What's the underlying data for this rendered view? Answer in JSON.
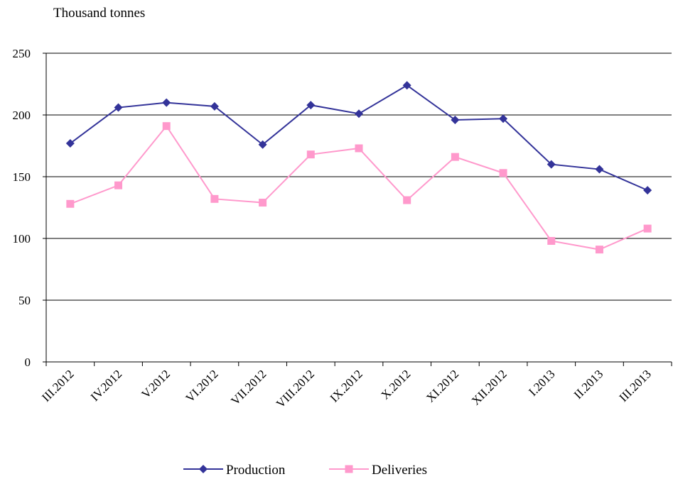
{
  "chart_data": {
    "type": "line",
    "unit_label": "Thousand tonnes",
    "categories": [
      "III.2012",
      "IV.2012",
      "V.2012",
      "VI.2012",
      "VII.2012",
      "VIII.2012",
      "IX.2012",
      "X.2012",
      "XI.2012",
      "XII.2012",
      "I.2013",
      "II.2013",
      "III.2013"
    ],
    "ylim": [
      0,
      250
    ],
    "yticks": [
      0,
      50,
      100,
      150,
      200,
      250
    ],
    "grid": true,
    "legend_position": "bottom",
    "series": [
      {
        "name": "Production",
        "color": "#333399",
        "marker": "diamond",
        "values": [
          177,
          206,
          210,
          207,
          176,
          208,
          201,
          224,
          196,
          197,
          160,
          156,
          139
        ]
      },
      {
        "name": "Deliveries",
        "color": "#ff99cc",
        "marker": "square",
        "values": [
          128,
          143,
          191,
          132,
          129,
          168,
          173,
          131,
          166,
          153,
          98,
          91,
          108
        ]
      }
    ]
  }
}
